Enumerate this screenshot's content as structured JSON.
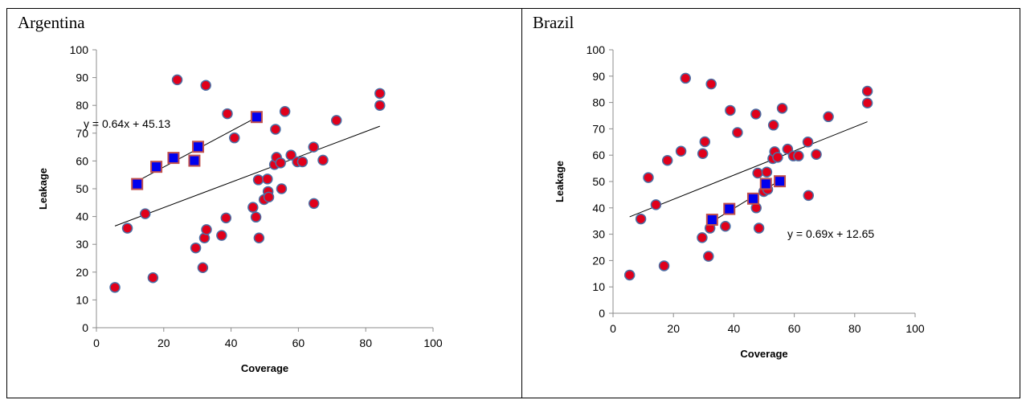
{
  "chart_data": [
    {
      "type": "scatter",
      "title": "Argentina",
      "xlabel": "Coverage",
      "ylabel": "Leakage",
      "xlim": [
        0,
        100
      ],
      "ylim": [
        0,
        100
      ],
      "xticks": [
        0,
        20,
        40,
        60,
        80,
        100
      ],
      "yticks": [
        0,
        10,
        20,
        30,
        40,
        50,
        60,
        70,
        80,
        90,
        100
      ],
      "grid": false,
      "series": [
        {
          "marker": "circle",
          "color": "#e0001b",
          "edge_color": "#4a6fa5",
          "points": [
            [
              5.5,
              14.5
            ],
            [
              9.2,
              35.8
            ],
            [
              14.5,
              41
            ],
            [
              16.8,
              18
            ],
            [
              24,
              89.2
            ],
            [
              29.5,
              28.7
            ],
            [
              31.6,
              21.6
            ],
            [
              32.1,
              32.3
            ],
            [
              32.7,
              35.3
            ],
            [
              32.5,
              87.2
            ],
            [
              37.2,
              33.2
            ],
            [
              38.5,
              39.5
            ],
            [
              38.9,
              77
            ],
            [
              41,
              68.3
            ],
            [
              46.5,
              43.3
            ],
            [
              47.4,
              39.8
            ],
            [
              48.1,
              53.2
            ],
            [
              48.3,
              32.3
            ],
            [
              49.8,
              46.1
            ],
            [
              50.8,
              53.5
            ],
            [
              51,
              49
            ],
            [
              51.2,
              47
            ],
            [
              52.9,
              58.7
            ],
            [
              53.2,
              71.4
            ],
            [
              53.5,
              61.3
            ],
            [
              54.7,
              59.3
            ],
            [
              55,
              50
            ],
            [
              56,
              77.8
            ],
            [
              57.8,
              62.1
            ],
            [
              59.7,
              59.7
            ],
            [
              61.2,
              59.7
            ],
            [
              64.5,
              65
            ],
            [
              64.6,
              44.7
            ],
            [
              67.3,
              60.3
            ],
            [
              71.3,
              74.6
            ],
            [
              84.2,
              84.3
            ],
            [
              84.2,
              80
            ]
          ]
        },
        {
          "marker": "square",
          "color": "#0000ee",
          "edge_color": "#c0504d",
          "points": [
            [
              12.1,
              51.7
            ],
            [
              17.8,
              57.9
            ],
            [
              22.9,
              61.1
            ],
            [
              29.1,
              60.1
            ],
            [
              30.2,
              65.1
            ],
            [
              47.6,
              75.8
            ]
          ]
        }
      ],
      "trendlines": [
        {
          "x": [
            5.5,
            84.2
          ],
          "y": [
            36.6,
            72.5
          ]
        },
        {
          "x": [
            12.1,
            47.6
          ],
          "y": [
            52.7,
            75.7
          ]
        }
      ],
      "annotations": [
        {
          "text": "y = 0.64x + 45.13"
        }
      ]
    },
    {
      "type": "scatter",
      "title": "Brazil",
      "xlabel": "Coverage",
      "ylabel": "Leakage",
      "xlim": [
        0,
        100
      ],
      "ylim": [
        0,
        100
      ],
      "xticks": [
        0,
        20,
        40,
        60,
        80,
        100
      ],
      "yticks": [
        0,
        10,
        20,
        30,
        40,
        50,
        60,
        70,
        80,
        90,
        100
      ],
      "grid": false,
      "series": [
        {
          "marker": "circle",
          "color": "#e0001b",
          "edge_color": "#4a6fa5",
          "points": [
            [
              5.5,
              14.5
            ],
            [
              9.2,
              35.8
            ],
            [
              11.7,
              51.5
            ],
            [
              14.2,
              41.2
            ],
            [
              16.9,
              18
            ],
            [
              18,
              58
            ],
            [
              22.5,
              61.5
            ],
            [
              24,
              89.2
            ],
            [
              29.5,
              28.7
            ],
            [
              29.7,
              60.6
            ],
            [
              30.4,
              65.1
            ],
            [
              31.6,
              21.6
            ],
            [
              32.1,
              32.3
            ],
            [
              32.5,
              87
            ],
            [
              37.2,
              33
            ],
            [
              38.8,
              77
            ],
            [
              41.2,
              68.6
            ],
            [
              47.3,
              75.6
            ],
            [
              47.4,
              40
            ],
            [
              47.9,
              53.2
            ],
            [
              48.3,
              32.3
            ],
            [
              49.9,
              46.2
            ],
            [
              50.9,
              53.6
            ],
            [
              51.2,
              47
            ],
            [
              52.9,
              58.7
            ],
            [
              53.1,
              71.4
            ],
            [
              53.5,
              61.3
            ],
            [
              54.5,
              59.2
            ],
            [
              56,
              77.8
            ],
            [
              57.8,
              62.3
            ],
            [
              59.7,
              59.7
            ],
            [
              61.4,
              59.7
            ],
            [
              64.5,
              65
            ],
            [
              64.7,
              44.7
            ],
            [
              67.3,
              60.3
            ],
            [
              71.3,
              74.6
            ],
            [
              84.2,
              84.3
            ],
            [
              84.2,
              79.8
            ]
          ]
        },
        {
          "marker": "square",
          "color": "#0000ee",
          "edge_color": "#c0504d",
          "points": [
            [
              32.8,
              35.5
            ],
            [
              38.5,
              39.6
            ],
            [
              46.4,
              43.5
            ],
            [
              50.6,
              49.1
            ],
            [
              55.2,
              50.1
            ]
          ]
        }
      ],
      "trendlines": [
        {
          "x": [
            5.5,
            84.2
          ],
          "y": [
            36.6,
            72.7
          ]
        },
        {
          "x": [
            32.8,
            55.2
          ],
          "y": [
            34.8,
            50.4
          ]
        }
      ],
      "annotations": [
        {
          "text": "y = 0.69x + 12.65"
        }
      ]
    }
  ]
}
